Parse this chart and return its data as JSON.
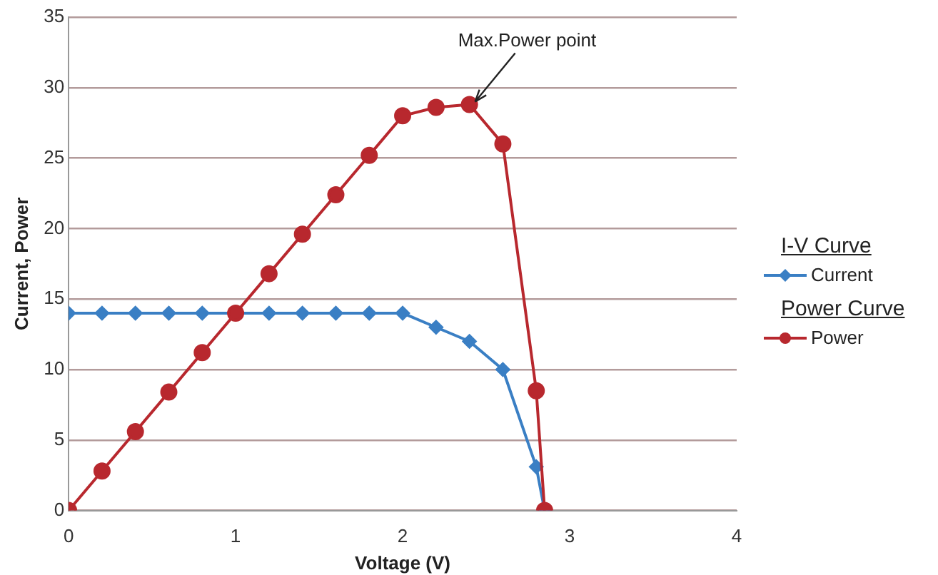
{
  "chart_data": {
    "type": "line",
    "xlabel": "Voltage (V)",
    "ylabel": "Current, Power",
    "xlim": [
      0,
      4
    ],
    "xticks": [
      0,
      1,
      2,
      3,
      4
    ],
    "ylim": [
      0,
      35
    ],
    "yticks": [
      0,
      5,
      10,
      15,
      20,
      25,
      30,
      35
    ],
    "grid": "y",
    "legend": "right",
    "line_style": "solid",
    "series": [
      {
        "name": "Current",
        "color": "#3a7fc4",
        "marker": "diamond",
        "x": [
          0,
          0.2,
          0.4,
          0.6,
          0.8,
          1,
          1.2,
          1.4,
          1.6,
          1.8,
          2,
          2.2,
          2.4,
          2.6,
          2.8,
          2.85
        ],
        "values": [
          14,
          14,
          14,
          14,
          14,
          14,
          14,
          14,
          14,
          14,
          14,
          13,
          12,
          10,
          3.1,
          0
        ]
      },
      {
        "name": "Power",
        "color": "#b8282e",
        "marker": "circle",
        "x": [
          0,
          0.2,
          0.4,
          0.6,
          0.8,
          1,
          1.2,
          1.4,
          1.6,
          1.8,
          2,
          2.2,
          2.4,
          2.6,
          2.8,
          2.85
        ],
        "values": [
          0,
          2.8,
          5.6,
          8.4,
          11.2,
          14,
          16.8,
          19.6,
          22.4,
          25.2,
          28,
          28.6,
          28.8,
          26,
          8.5,
          0
        ]
      }
    ],
    "annotations": [
      "I-V Curve",
      "Power Curve",
      {
        "text": "Max.Power point",
        "x": 2.4,
        "y": 28.8
      }
    ]
  }
}
